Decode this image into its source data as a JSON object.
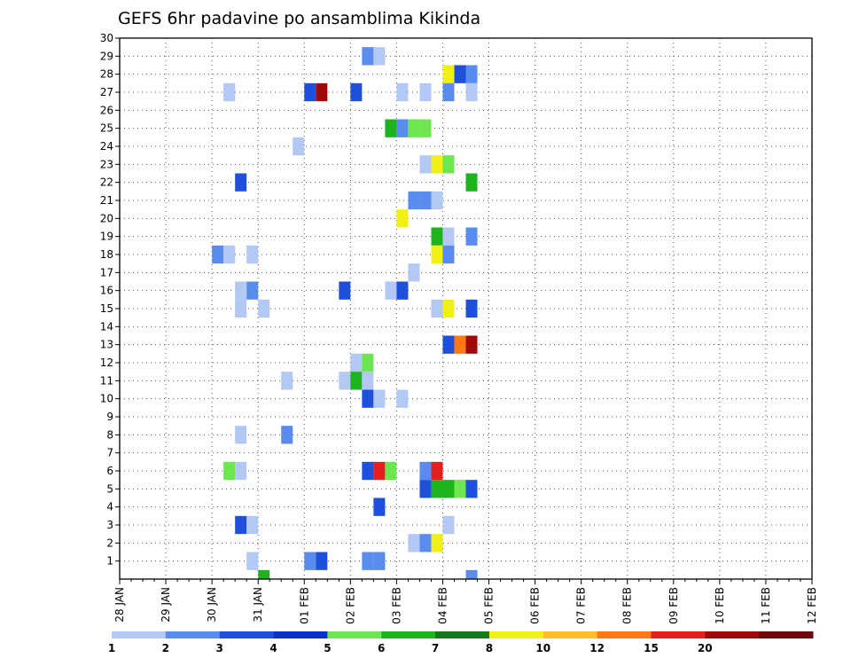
{
  "chart_data": {
    "type": "heatmap",
    "title": "GEFS 6hr padavine po ansamblima Kikinda",
    "x_tick_labels": [
      "28 JAN",
      "29 JAN",
      "30 JAN",
      "31 JAN",
      "01 FEB",
      "02 FEB",
      "03 FEB",
      "04 FEB",
      "05 FEB",
      "06 FEB",
      "07 FEB",
      "08 FEB",
      "09 FEB",
      "10 FEB",
      "11 FEB",
      "12 FEB"
    ],
    "y_tick_labels": [
      "1",
      "2",
      "3",
      "4",
      "5",
      "6",
      "7",
      "8",
      "9",
      "10",
      "11",
      "12",
      "13",
      "14",
      "15",
      "16",
      "17",
      "18",
      "19",
      "20",
      "21",
      "22",
      "23",
      "24",
      "25",
      "26",
      "27",
      "28",
      "29",
      "30"
    ],
    "ylim": [
      0,
      30
    ],
    "x_step_unit": "6hr",
    "x_steps_per_day": 4,
    "grid": true,
    "legend": {
      "labels": [
        "1",
        "2",
        "3",
        "4",
        "5",
        "6",
        "7",
        "8",
        "10",
        "12",
        "15",
        "20"
      ],
      "colors": [
        "#b4c8f5",
        "#5a8cf0",
        "#1e50dc",
        "#0a32c8",
        "#6ee650",
        "#1eb41e",
        "#14781e",
        "#f0f014",
        "#ffbe28",
        "#ff7814",
        "#e61e1e",
        "#a00a0a",
        "#6e0a0a"
      ]
    },
    "bins": [
      "1-2",
      "2-3",
      "3-4",
      "4-5",
      "5-6",
      "6-7",
      "7-8",
      "8-10",
      "10-12",
      "12-15",
      "15-20",
      "20+"
    ],
    "cells": [
      {
        "member": 29,
        "step": 21.5,
        "bin": 2
      },
      {
        "member": 29,
        "step": 22.5,
        "bin": 1
      },
      {
        "member": 28,
        "step": 28.5,
        "bin": 8
      },
      {
        "member": 28,
        "step": 29.5,
        "bin": 3
      },
      {
        "member": 28,
        "step": 30.5,
        "bin": 2
      },
      {
        "member": 27,
        "step": 9.5,
        "bin": 1
      },
      {
        "member": 27,
        "step": 16.5,
        "bin": 3
      },
      {
        "member": 27,
        "step": 17.5,
        "bin": 12
      },
      {
        "member": 27,
        "step": 20.5,
        "bin": 3
      },
      {
        "member": 27,
        "step": 24.5,
        "bin": 1
      },
      {
        "member": 27,
        "step": 26.5,
        "bin": 1
      },
      {
        "member": 27,
        "step": 28.5,
        "bin": 2
      },
      {
        "member": 27,
        "step": 30.5,
        "bin": 1
      },
      {
        "member": 25,
        "step": 23.5,
        "bin": 6
      },
      {
        "member": 25,
        "step": 24.5,
        "bin": 2
      },
      {
        "member": 25,
        "step": 25.5,
        "bin": 5
      },
      {
        "member": 25,
        "step": 26.5,
        "bin": 5
      },
      {
        "member": 24,
        "step": 15.5,
        "bin": 1
      },
      {
        "member": 23,
        "step": 26.5,
        "bin": 1
      },
      {
        "member": 23,
        "step": 27.5,
        "bin": 8
      },
      {
        "member": 23,
        "step": 28.5,
        "bin": 5
      },
      {
        "member": 22,
        "step": 10.5,
        "bin": 3
      },
      {
        "member": 22,
        "step": 30.5,
        "bin": 6
      },
      {
        "member": 21,
        "step": 25.5,
        "bin": 2
      },
      {
        "member": 21,
        "step": 26.5,
        "bin": 2
      },
      {
        "member": 21,
        "step": 27.5,
        "bin": 1
      },
      {
        "member": 20,
        "step": 24.5,
        "bin": 8
      },
      {
        "member": 19,
        "step": 27.5,
        "bin": 6
      },
      {
        "member": 19,
        "step": 28.5,
        "bin": 1
      },
      {
        "member": 19,
        "step": 30.5,
        "bin": 2
      },
      {
        "member": 18,
        "step": 8.5,
        "bin": 2
      },
      {
        "member": 18,
        "step": 9.5,
        "bin": 1
      },
      {
        "member": 18,
        "step": 11.5,
        "bin": 1
      },
      {
        "member": 18,
        "step": 27.5,
        "bin": 8
      },
      {
        "member": 18,
        "step": 28.5,
        "bin": 2
      },
      {
        "member": 17,
        "step": 25.5,
        "bin": 1
      },
      {
        "member": 16,
        "step": 10.5,
        "bin": 1
      },
      {
        "member": 16,
        "step": 11.5,
        "bin": 2
      },
      {
        "member": 16,
        "step": 19.5,
        "bin": 3
      },
      {
        "member": 16,
        "step": 23.5,
        "bin": 1
      },
      {
        "member": 16,
        "step": 24.5,
        "bin": 3
      },
      {
        "member": 15,
        "step": 10.5,
        "bin": 1
      },
      {
        "member": 15,
        "step": 12.5,
        "bin": 1
      },
      {
        "member": 15,
        "step": 27.5,
        "bin": 1
      },
      {
        "member": 15,
        "step": 28.5,
        "bin": 8
      },
      {
        "member": 15,
        "step": 30.5,
        "bin": 3
      },
      {
        "member": 13,
        "step": 28.5,
        "bin": 3
      },
      {
        "member": 13,
        "step": 29.5,
        "bin": 10
      },
      {
        "member": 13,
        "step": 30.5,
        "bin": 12
      },
      {
        "member": 12,
        "step": 20.5,
        "bin": 1
      },
      {
        "member": 12,
        "step": 21.5,
        "bin": 5
      },
      {
        "member": 11,
        "step": 14.5,
        "bin": 1
      },
      {
        "member": 11,
        "step": 19.5,
        "bin": 1
      },
      {
        "member": 11,
        "step": 20.5,
        "bin": 6
      },
      {
        "member": 11,
        "step": 21.5,
        "bin": 1
      },
      {
        "member": 10,
        "step": 21.5,
        "bin": 3
      },
      {
        "member": 10,
        "step": 22.5,
        "bin": 1
      },
      {
        "member": 10,
        "step": 24.5,
        "bin": 1
      },
      {
        "member": 8,
        "step": 10.5,
        "bin": 1
      },
      {
        "member": 8,
        "step": 14.5,
        "bin": 2
      },
      {
        "member": 6,
        "step": 9.5,
        "bin": 5
      },
      {
        "member": 6,
        "step": 10.5,
        "bin": 1
      },
      {
        "member": 6,
        "step": 21.5,
        "bin": 3
      },
      {
        "member": 6,
        "step": 22.5,
        "bin": 11
      },
      {
        "member": 6,
        "step": 23.5,
        "bin": 5
      },
      {
        "member": 6,
        "step": 26.5,
        "bin": 2
      },
      {
        "member": 6,
        "step": 27.5,
        "bin": 11
      },
      {
        "member": 5,
        "step": 26.5,
        "bin": 3
      },
      {
        "member": 5,
        "step": 27.5,
        "bin": 6
      },
      {
        "member": 5,
        "step": 28.5,
        "bin": 6
      },
      {
        "member": 5,
        "step": 29.5,
        "bin": 5
      },
      {
        "member": 5,
        "step": 30.5,
        "bin": 3
      },
      {
        "member": 4,
        "step": 22.5,
        "bin": 3
      },
      {
        "member": 3,
        "step": 10.5,
        "bin": 3
      },
      {
        "member": 3,
        "step": 11.5,
        "bin": 1
      },
      {
        "member": 3,
        "step": 28.5,
        "bin": 1
      },
      {
        "member": 2,
        "step": 25.5,
        "bin": 1
      },
      {
        "member": 2,
        "step": 26.5,
        "bin": 2
      },
      {
        "member": 2,
        "step": 27.5,
        "bin": 8
      },
      {
        "member": 1,
        "step": 11.5,
        "bin": 1
      },
      {
        "member": 1,
        "step": 16.5,
        "bin": 2
      },
      {
        "member": 1,
        "step": 17.5,
        "bin": 3
      },
      {
        "member": 1,
        "step": 21.5,
        "bin": 2
      },
      {
        "member": 1,
        "step": 22.5,
        "bin": 2
      },
      {
        "member": 0,
        "step": 12.5,
        "bin": 6
      },
      {
        "member": 0,
        "step": 30.5,
        "bin": 2
      }
    ]
  }
}
